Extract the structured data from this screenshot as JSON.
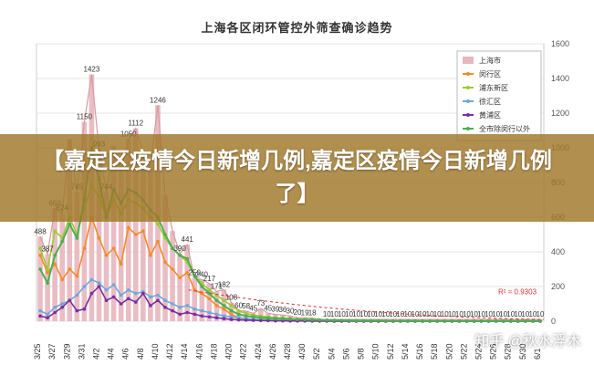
{
  "headline": "【嘉定区疫情今日新增几例,嘉定区疫情今日新增几例了】",
  "watermark": "知乎 @秋水浮木",
  "colors": {
    "banner": "#a07828",
    "total_bar": "#e7b6be",
    "total_line": "#d89aa4",
    "minhang": "#f28c28",
    "pudong": "#9acd32",
    "xuhui": "#6fa8dc",
    "huangpu": "#7b2fa0",
    "all_exclude_outliers": "#4caf50",
    "trend": "#e03030"
  },
  "chart_data": {
    "type": "bar",
    "title": "上海各区闭环管控外筛查确诊趋势",
    "ylim": [
      0,
      1600
    ],
    "yticks": [
      0,
      200,
      400,
      600,
      800,
      1000,
      1200,
      1400,
      1600
    ],
    "y_axis_side": "right",
    "grid": true,
    "legend_position": "top-right",
    "categories": [
      "3/25",
      "3/26",
      "3/27",
      "3/28",
      "3/29",
      "3/30",
      "3/31",
      "4/1",
      "4/2",
      "4/3",
      "4/4",
      "4/5",
      "4/6",
      "4/7",
      "4/8",
      "4/9",
      "4/10",
      "4/11",
      "4/12",
      "4/13",
      "4/14",
      "4/15",
      "4/16",
      "4/17",
      "4/18",
      "4/19",
      "4/20",
      "4/21",
      "4/22",
      "4/23",
      "4/24",
      "4/25",
      "4/26",
      "4/27",
      "4/28",
      "4/29",
      "4/30",
      "5/1",
      "5/2",
      "5/3",
      "5/4",
      "5/5",
      "5/6",
      "5/7",
      "5/8",
      "5/9",
      "5/10",
      "5/11",
      "5/12",
      "5/13",
      "5/14",
      "5/15",
      "5/16",
      "5/17",
      "5/18",
      "5/19",
      "5/20",
      "5/21",
      "5/22",
      "5/23",
      "5/24",
      "5/25",
      "5/26",
      "5/27",
      "5/28",
      "5/29",
      "5/30",
      "5/31",
      "6/1"
    ],
    "x_tick_labels": [
      "3/25",
      "3/27",
      "3/29",
      "3/31",
      "4/2",
      "4/4",
      "4/6",
      "4/8",
      "4/10",
      "4/12",
      "4/14",
      "4/16",
      "4/18",
      "4/20",
      "4/22",
      "4/24",
      "4/26",
      "4/28",
      "4/30",
      "5/2",
      "5/4",
      "5/6",
      "5/8",
      "5/10",
      "5/12",
      "5/14",
      "5/16",
      "5/18",
      "5/20",
      "5/22",
      "5/24",
      "5/26",
      "5/28",
      "5/30",
      "6/1"
    ],
    "series": [
      {
        "name": "上海市",
        "kind": "bar",
        "color": "#e7b6be",
        "values": [
          488,
          387,
          650,
          624,
          1050,
          745,
          1150,
          1423,
          993,
          744,
          1010,
          870,
          1050,
          1112,
          980,
          906,
          1246,
          728,
          520,
          390,
          441,
          250,
          240,
          217,
          171,
          182,
          108,
          60,
          58,
          45,
          73,
          45,
          39,
          36,
          30,
          20,
          19,
          18,
          10,
          10,
          10,
          10,
          10,
          10,
          10,
          10,
          10,
          10,
          10,
          10,
          10,
          10,
          10,
          10,
          10,
          10,
          10,
          10,
          10,
          10,
          10,
          10,
          10,
          10,
          10,
          10,
          10,
          10,
          10
        ]
      },
      {
        "name": "闵行区",
        "kind": "line",
        "color": "#f28c28",
        "values": [
          380,
          280,
          330,
          240,
          300,
          260,
          420,
          600,
          480,
          380,
          420,
          330,
          540,
          500,
          520,
          380,
          460,
          340,
          300,
          250,
          280,
          180,
          160,
          130,
          90,
          70,
          40,
          20,
          15,
          10,
          8,
          6,
          5,
          4,
          3,
          2,
          2,
          1,
          1,
          1,
          1,
          1,
          1,
          1,
          1,
          0,
          0,
          0,
          0,
          0,
          0,
          0,
          0,
          0,
          0,
          0,
          0,
          0,
          0,
          0,
          0,
          0,
          0,
          0,
          0,
          0,
          0,
          0,
          0
        ]
      },
      {
        "name": "浦东新区",
        "kind": "line",
        "color": "#9acd32",
        "values": [
          420,
          300,
          520,
          480,
          600,
          500,
          650,
          780,
          720,
          600,
          700,
          620,
          700,
          680,
          650,
          600,
          560,
          480,
          420,
          380,
          340,
          260,
          220,
          180,
          150,
          120,
          90,
          60,
          45,
          35,
          30,
          25,
          20,
          18,
          15,
          12,
          10,
          8,
          6,
          5,
          5,
          4,
          4,
          3,
          3,
          3,
          2,
          2,
          2,
          2,
          1,
          1,
          1,
          1,
          1,
          1,
          1,
          1,
          1,
          1,
          1,
          1,
          1,
          1,
          1,
          1,
          1,
          1,
          1
        ]
      },
      {
        "name": "徐汇区",
        "kind": "line",
        "color": "#6fa8dc",
        "values": [
          60,
          40,
          80,
          100,
          120,
          150,
          200,
          240,
          220,
          180,
          210,
          150,
          180,
          160,
          170,
          140,
          150,
          120,
          100,
          80,
          90,
          70,
          60,
          50,
          40,
          30,
          25,
          20,
          15,
          10,
          8,
          6,
          5,
          4,
          3,
          2,
          2,
          1,
          1,
          1,
          1,
          1,
          1,
          1,
          0,
          0,
          0,
          0,
          0,
          0,
          0,
          0,
          0,
          0,
          0,
          0,
          0,
          0,
          0,
          0,
          0,
          0,
          0,
          0,
          0,
          0,
          0,
          0,
          0
        ]
      },
      {
        "name": "黄浦区",
        "kind": "line",
        "color": "#7b2fa0",
        "values": [
          30,
          20,
          50,
          80,
          120,
          60,
          70,
          160,
          200,
          120,
          140,
          100,
          130,
          110,
          160,
          90,
          120,
          80,
          60,
          40,
          50,
          40,
          30,
          25,
          20,
          15,
          10,
          8,
          6,
          5,
          4,
          3,
          2,
          2,
          1,
          1,
          1,
          1,
          1,
          1,
          0,
          0,
          0,
          0,
          0,
          0,
          0,
          0,
          0,
          0,
          0,
          0,
          0,
          0,
          0,
          0,
          0,
          0,
          0,
          0,
          0,
          0,
          0,
          0,
          0,
          0,
          0,
          0,
          0
        ]
      },
      {
        "name": "全市除闵行以外",
        "kind": "line",
        "color": "#4caf50",
        "values": [
          300,
          220,
          380,
          460,
          560,
          480,
          700,
          1000,
          820,
          600,
          760,
          680,
          760,
          740,
          700,
          640,
          600,
          500,
          420,
          380,
          360,
          260,
          200,
          160,
          120,
          90,
          60,
          40,
          30,
          25,
          20,
          18,
          16,
          14,
          12,
          10,
          9,
          8,
          7,
          6,
          5,
          5,
          4,
          4,
          3,
          3,
          3,
          2,
          2,
          2,
          2,
          2,
          1,
          1,
          1,
          1,
          1,
          1,
          1,
          1,
          1,
          1,
          1,
          1,
          1,
          1,
          1,
          1,
          1
        ]
      }
    ],
    "bar_labels": [
      {
        "category": "3/25",
        "value": 488
      },
      {
        "category": "3/26",
        "value": 387
      },
      {
        "category": "3/27",
        "value": 650
      },
      {
        "category": "3/28",
        "value": 624
      },
      {
        "category": "3/31",
        "value": 1150
      },
      {
        "category": "3/30",
        "value": 745
      },
      {
        "category": "4/1",
        "value": 1423
      },
      {
        "category": "4/2",
        "value": 993
      },
      {
        "category": "4/3",
        "value": 744
      },
      {
        "category": "4/6",
        "value": 1050
      },
      {
        "category": "4/7",
        "value": 1112
      },
      {
        "category": "4/10",
        "value": 1246
      },
      {
        "category": "4/13",
        "value": 390
      },
      {
        "category": "4/14",
        "value": 441
      },
      {
        "category": "4/15",
        "value": 250
      },
      {
        "category": "4/16",
        "value": 240
      },
      {
        "category": "4/17",
        "value": 217
      },
      {
        "category": "4/18",
        "value": 171
      },
      {
        "category": "4/19",
        "value": 182
      },
      {
        "category": "4/20",
        "value": 108
      },
      {
        "category": "4/21",
        "value": 60
      },
      {
        "category": "4/22",
        "value": 58
      },
      {
        "category": "4/24",
        "value": 73
      },
      {
        "category": "4/23",
        "value": 45
      },
      {
        "category": "4/25",
        "value": 45
      },
      {
        "category": "4/26",
        "value": 39
      },
      {
        "category": "4/27",
        "value": 36
      },
      {
        "category": "4/28",
        "value": 30
      },
      {
        "category": "4/29",
        "value": 20
      },
      {
        "category": "4/30",
        "value": 19
      },
      {
        "category": "5/1",
        "value": 18
      },
      {
        "category": "5/3",
        "value": 10
      },
      {
        "category": "5/4",
        "value": 10
      },
      {
        "category": "5/5",
        "value": 10
      },
      {
        "category": "5/6",
        "value": 10
      },
      {
        "category": "5/7",
        "value": 10
      },
      {
        "category": "5/8",
        "value": 10
      },
      {
        "category": "5/9",
        "value": 10
      },
      {
        "category": "5/10",
        "value": 10
      },
      {
        "category": "5/11",
        "value": 10
      },
      {
        "category": "5/12",
        "value": 10
      },
      {
        "category": "5/13",
        "value": 10
      },
      {
        "category": "5/14",
        "value": 10
      },
      {
        "category": "5/15",
        "value": 10
      },
      {
        "category": "5/16",
        "value": 10
      },
      {
        "category": "5/17",
        "value": 10
      },
      {
        "category": "5/18",
        "value": 10
      },
      {
        "category": "5/19",
        "value": 10
      },
      {
        "category": "5/20",
        "value": 10
      },
      {
        "category": "5/21",
        "value": 10
      },
      {
        "category": "5/22",
        "value": 10
      },
      {
        "category": "5/23",
        "value": 10
      },
      {
        "category": "5/24",
        "value": 10
      },
      {
        "category": "5/25",
        "value": 10
      },
      {
        "category": "5/26",
        "value": 10
      },
      {
        "category": "5/27",
        "value": 10
      },
      {
        "category": "5/28",
        "value": 10
      },
      {
        "category": "5/29",
        "value": 10
      },
      {
        "category": "5/30",
        "value": 10
      },
      {
        "category": "5/31",
        "value": 10
      },
      {
        "category": "6/1",
        "value": 10
      }
    ],
    "trend_annotation": "R² = 0.9303"
  }
}
